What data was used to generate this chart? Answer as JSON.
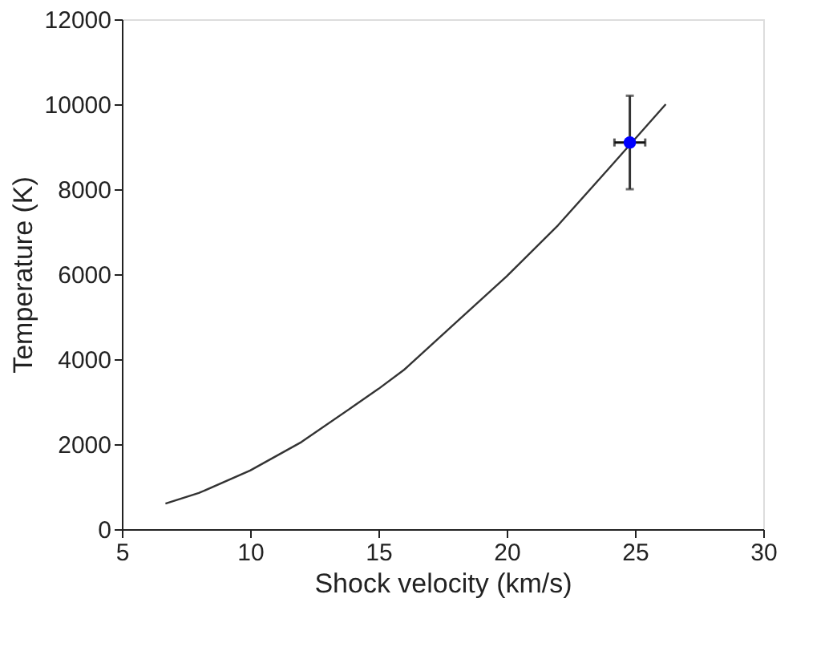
{
  "chart_data": {
    "type": "line",
    "xlabel": "Shock velocity (km/s)",
    "ylabel": "Temperature (K)",
    "xlim": [
      5,
      30
    ],
    "xticks": [
      5,
      10,
      15,
      20,
      25,
      30
    ],
    "ylim": [
      0,
      12000
    ],
    "yticks": [
      0,
      2000,
      4000,
      6000,
      8000,
      10000,
      12000
    ],
    "grid": false,
    "series": [
      {
        "color": "#333333",
        "marker": "none",
        "x": [
          6.7,
          8,
          10,
          12,
          14,
          15,
          16,
          18,
          20,
          22,
          24,
          26.2
        ],
        "values": [
          600,
          850,
          1380,
          2050,
          2880,
          3300,
          3750,
          4850,
          5950,
          7150,
          8500,
          10000
        ]
      },
      {
        "type": "scatter",
        "color": "#0000ff",
        "marker": "circle",
        "x": [
          24.8
        ],
        "values": [
          9100
        ],
        "errors": [
          [
            8000,
            10200
          ]
        ],
        "xerrors": [
          [
            24.2,
            25.4
          ]
        ]
      }
    ]
  }
}
